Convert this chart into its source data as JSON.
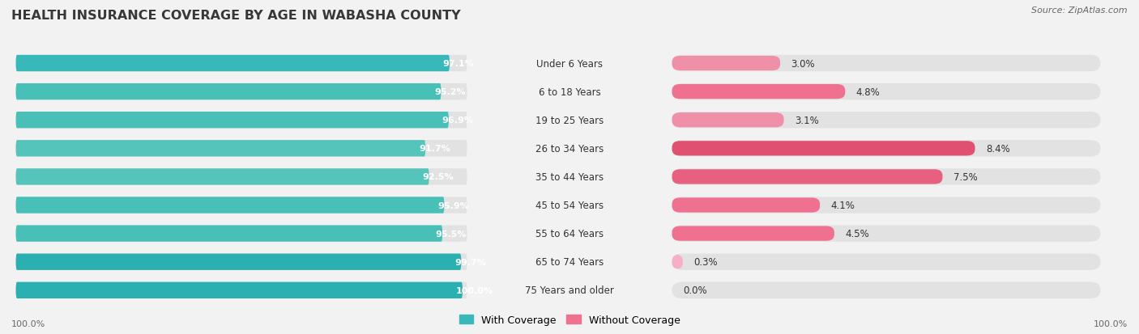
{
  "title": "HEALTH INSURANCE COVERAGE BY AGE IN WABASHA COUNTY",
  "source": "Source: ZipAtlas.com",
  "categories": [
    "Under 6 Years",
    "6 to 18 Years",
    "19 to 25 Years",
    "26 to 34 Years",
    "35 to 44 Years",
    "45 to 54 Years",
    "55 to 64 Years",
    "65 to 74 Years",
    "75 Years and older"
  ],
  "with_coverage": [
    97.1,
    95.2,
    96.9,
    91.7,
    92.5,
    95.9,
    95.5,
    99.7,
    100.0
  ],
  "without_coverage": [
    3.0,
    4.8,
    3.1,
    8.4,
    7.5,
    4.1,
    4.5,
    0.3,
    0.0
  ],
  "with_labels": [
    "97.1%",
    "95.2%",
    "96.9%",
    "91.7%",
    "92.5%",
    "95.9%",
    "95.5%",
    "99.7%",
    "100.0%"
  ],
  "without_labels": [
    "3.0%",
    "4.8%",
    "3.1%",
    "8.4%",
    "7.5%",
    "4.1%",
    "4.5%",
    "0.3%",
    "0.0%"
  ],
  "color_with_high": "#38b8b8",
  "color_with_mid": "#50c8c0",
  "color_without_dark": "#e85878",
  "color_without_mid": "#f07090",
  "color_without_light": "#f5a8c0",
  "color_without_vlight": "#f8c0d0",
  "bg_color": "#f2f2f2",
  "bar_bg_color": "#e2e2e2",
  "legend_with_color": "#38b8b8",
  "legend_without_color": "#f07090",
  "legend_with": "With Coverage",
  "legend_without": "Without Coverage",
  "axis_label_left": "100.0%",
  "axis_label_right": "100.0%"
}
